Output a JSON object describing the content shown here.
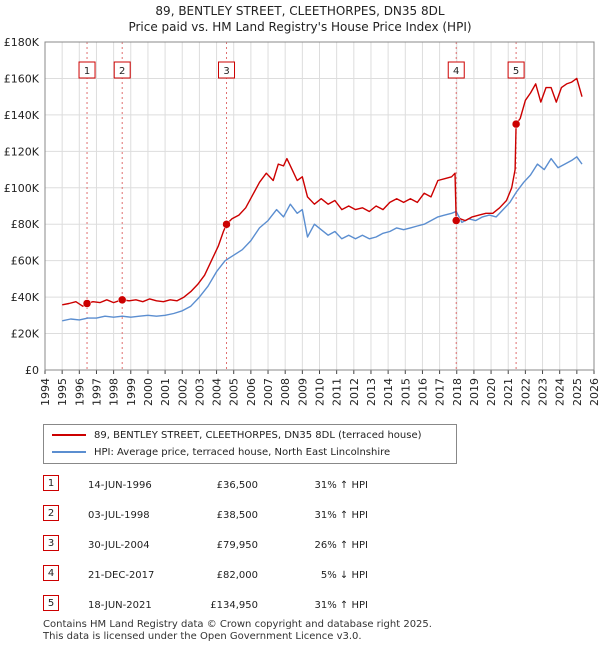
{
  "title_line1": "89, BENTLEY STREET, CLEETHORPES, DN35 8DL",
  "title_line2": "Price paid vs. HM Land Registry's House Price Index (HPI)",
  "colors": {
    "property": "#cc0000",
    "hpi": "#5b8ed0",
    "marker_border": "#cc0000",
    "vline": "#e07070",
    "grid": "#dddddd",
    "plot_bg": "#ffffff"
  },
  "legend": {
    "property_label": "89, BENTLEY STREET, CLEETHORPES, DN35 8DL (terraced house)",
    "hpi_label": "HPI: Average price, terraced house, North East Lincolnshire"
  },
  "chart_data": {
    "type": "line",
    "title": "Price paid vs. HM Land Registry's House Price Index (HPI)",
    "xlim": [
      1994,
      2026
    ],
    "ylim": [
      0,
      180000
    ],
    "y_ticks": [
      {
        "value": 0,
        "label": "£0"
      },
      {
        "value": 20000,
        "label": "£20K"
      },
      {
        "value": 40000,
        "label": "£40K"
      },
      {
        "value": 60000,
        "label": "£60K"
      },
      {
        "value": 80000,
        "label": "£80K"
      },
      {
        "value": 100000,
        "label": "£100K"
      },
      {
        "value": 120000,
        "label": "£120K"
      },
      {
        "value": 140000,
        "label": "£140K"
      },
      {
        "value": 160000,
        "label": "£160K"
      },
      {
        "value": 180000,
        "label": "£180K"
      }
    ],
    "x_ticks": [
      "1994",
      "1995",
      "1996",
      "1997",
      "1998",
      "1999",
      "2000",
      "2001",
      "2002",
      "2003",
      "2004",
      "2005",
      "2006",
      "2007",
      "2008",
      "2009",
      "2010",
      "2011",
      "2012",
      "2013",
      "2014",
      "2015",
      "2016",
      "2017",
      "2018",
      "2019",
      "2020",
      "2021",
      "2022",
      "2023",
      "2024",
      "2025",
      "2026"
    ],
    "grid": true,
    "series": [
      {
        "name": "89, BENTLEY STREET, CLEETHORPES, DN35 8DL (terraced house)",
        "x": [
          1995.0,
          1995.4,
          1995.8,
          1996.2,
          1996.45,
          1996.8,
          1997.2,
          1997.6,
          1998.0,
          1998.3,
          1998.5,
          1998.9,
          1999.3,
          1999.7,
          2000.1,
          2000.5,
          2000.9,
          2001.3,
          2001.7,
          2002.1,
          2002.5,
          2002.9,
          2003.3,
          2003.7,
          2004.1,
          2004.4,
          2004.58,
          2004.9,
          2005.3,
          2005.7,
          2006.1,
          2006.5,
          2006.9,
          2007.3,
          2007.6,
          2007.9,
          2008.1,
          2008.4,
          2008.7,
          2009.0,
          2009.3,
          2009.7,
          2010.1,
          2010.5,
          2010.9,
          2011.3,
          2011.7,
          2012.1,
          2012.5,
          2012.9,
          2013.3,
          2013.7,
          2014.1,
          2014.5,
          2014.9,
          2015.3,
          2015.7,
          2016.1,
          2016.5,
          2016.9,
          2017.3,
          2017.7,
          2017.9,
          2017.97,
          2018.2,
          2018.5,
          2018.9,
          2019.3,
          2019.7,
          2020.1,
          2020.5,
          2020.9,
          2021.2,
          2021.4,
          2021.46,
          2021.7,
          2022.0,
          2022.3,
          2022.6,
          2022.9,
          2023.2,
          2023.5,
          2023.8,
          2024.1,
          2024.4,
          2024.7,
          2025.0,
          2025.3
        ],
        "values": [
          35800,
          36500,
          37500,
          35000,
          36500,
          37500,
          37000,
          38500,
          37000,
          38000,
          38500,
          38000,
          38500,
          37500,
          39000,
          38000,
          37500,
          38500,
          38000,
          40000,
          43000,
          47000,
          52000,
          60000,
          68000,
          76000,
          79950,
          83000,
          85000,
          89000,
          96000,
          103000,
          108000,
          104000,
          113000,
          112000,
          116000,
          110000,
          104000,
          106000,
          95000,
          91000,
          94000,
          91000,
          93000,
          88000,
          90000,
          88000,
          89000,
          87000,
          90000,
          88000,
          92000,
          94000,
          92000,
          94000,
          92000,
          97000,
          95000,
          104000,
          105000,
          106000,
          108000,
          82000,
          83000,
          82000,
          84000,
          85000,
          86000,
          86000,
          89000,
          93000,
          100000,
          110000,
          134950,
          138000,
          148000,
          152000,
          157000,
          147000,
          155000,
          155000,
          147000,
          155000,
          157000,
          158000,
          160000,
          150000
        ]
      },
      {
        "name": "HPI: Average price, terraced house, North East Lincolnshire",
        "x": [
          1995.0,
          1995.5,
          1996.0,
          1996.5,
          1997.0,
          1997.5,
          1998.0,
          1998.5,
          1999.0,
          1999.5,
          2000.0,
          2000.5,
          2001.0,
          2001.5,
          2002.0,
          2002.5,
          2003.0,
          2003.5,
          2004.0,
          2004.5,
          2005.0,
          2005.5,
          2006.0,
          2006.5,
          2007.0,
          2007.5,
          2007.9,
          2008.3,
          2008.7,
          2009.0,
          2009.3,
          2009.7,
          2010.1,
          2010.5,
          2010.9,
          2011.3,
          2011.7,
          2012.1,
          2012.5,
          2012.9,
          2013.3,
          2013.7,
          2014.1,
          2014.5,
          2014.9,
          2015.3,
          2015.7,
          2016.1,
          2016.5,
          2016.9,
          2017.3,
          2017.7,
          2017.97,
          2018.3,
          2018.7,
          2019.1,
          2019.5,
          2019.9,
          2020.3,
          2020.7,
          2021.1,
          2021.5,
          2021.9,
          2022.3,
          2022.7,
          2023.1,
          2023.5,
          2023.9,
          2024.3,
          2024.7,
          2025.0,
          2025.3
        ],
        "values": [
          27000,
          28000,
          27500,
          28500,
          28500,
          29500,
          29000,
          29500,
          29000,
          29500,
          30000,
          29500,
          30000,
          31000,
          32500,
          35000,
          40000,
          46000,
          54000,
          60000,
          63000,
          66000,
          71000,
          78000,
          82000,
          88000,
          84000,
          91000,
          86000,
          88000,
          73000,
          80000,
          77000,
          74000,
          76000,
          72000,
          74000,
          72000,
          74000,
          72000,
          73000,
          75000,
          76000,
          78000,
          77000,
          78000,
          79000,
          80000,
          82000,
          84000,
          85000,
          86000,
          87000,
          81000,
          83000,
          82000,
          84000,
          85000,
          84000,
          88000,
          92000,
          98000,
          103000,
          107000,
          113000,
          110000,
          116000,
          111000,
          113000,
          115000,
          117000,
          113000
        ]
      }
    ],
    "annotations": [
      {
        "id": "1",
        "x": 1996.45,
        "price": 36500
      },
      {
        "id": "2",
        "x": 1998.5,
        "price": 38500
      },
      {
        "id": "3",
        "x": 2004.58,
        "price": 79950
      },
      {
        "id": "4",
        "x": 2017.97,
        "price": 82000
      },
      {
        "id": "5",
        "x": 2021.46,
        "price": 134950
      }
    ]
  },
  "sales": [
    {
      "num": "1",
      "date": "14-JUN-1996",
      "price": "£36,500",
      "hpi": "31% ↑ HPI"
    },
    {
      "num": "2",
      "date": "03-JUL-1998",
      "price": "£38,500",
      "hpi": "31% ↑ HPI"
    },
    {
      "num": "3",
      "date": "30-JUL-2004",
      "price": "£79,950",
      "hpi": "26% ↑ HPI"
    },
    {
      "num": "4",
      "date": "21-DEC-2017",
      "price": "£82,000",
      "hpi": "5% ↓ HPI"
    },
    {
      "num": "5",
      "date": "18-JUN-2021",
      "price": "£134,950",
      "hpi": "31% ↑ HPI"
    }
  ],
  "footer": {
    "line1": "Contains HM Land Registry data © Crown copyright and database right 2025.",
    "line2": "This data is licensed under the Open Government Licence v3.0."
  }
}
